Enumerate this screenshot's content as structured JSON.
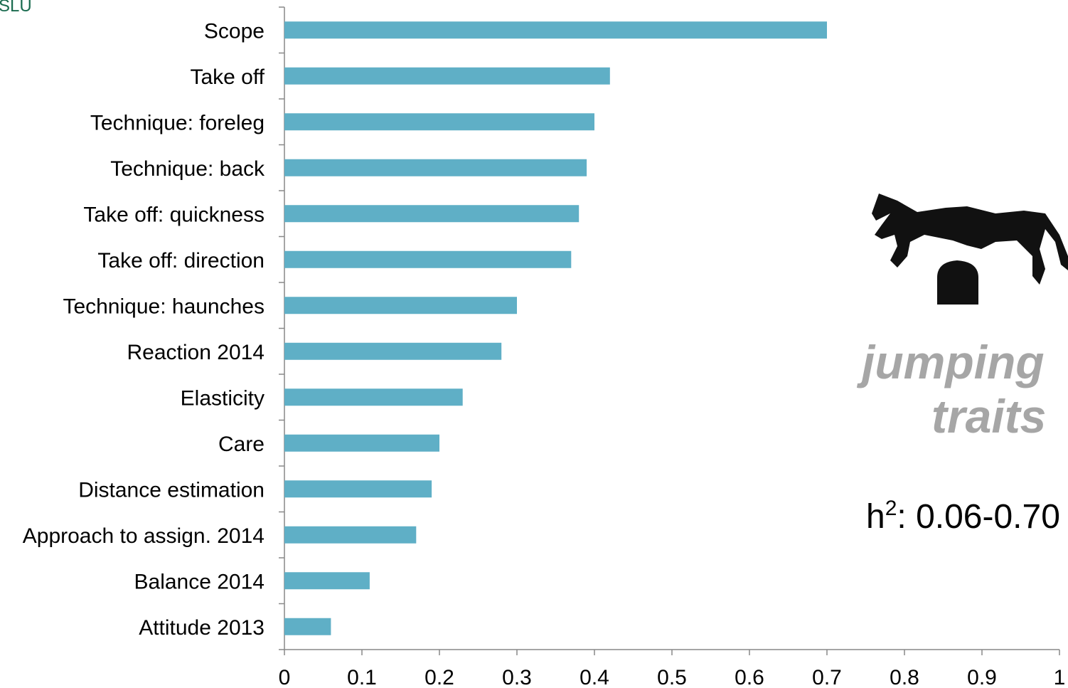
{
  "chart_data": {
    "type": "bar",
    "orientation": "horizontal",
    "logo": "SLU",
    "categories": [
      "Scope",
      "Take off",
      "Technique: foreleg",
      "Technique: back",
      "Take off: quickness",
      "Take off: direction",
      "Technique: haunches",
      "Reaction 2014",
      "Elasticity",
      "Care",
      "Distance estimation",
      "Approach to assign. 2014",
      "Balance 2014",
      "Attitude 2013"
    ],
    "values": [
      0.7,
      0.42,
      0.4,
      0.39,
      0.38,
      0.37,
      0.3,
      0.28,
      0.23,
      0.2,
      0.19,
      0.17,
      0.11,
      0.06
    ],
    "color": "#5fafc6",
    "xlim": [
      0,
      1
    ],
    "xticks": [
      0,
      0.1,
      0.2,
      0.3,
      0.4,
      0.5,
      0.6,
      0.7,
      0.8,
      0.9,
      1
    ],
    "annotations": {
      "line1": "jumping",
      "line2": "traits",
      "h": "h",
      "sup": "2",
      "range": ": 0.06-0.70"
    }
  }
}
